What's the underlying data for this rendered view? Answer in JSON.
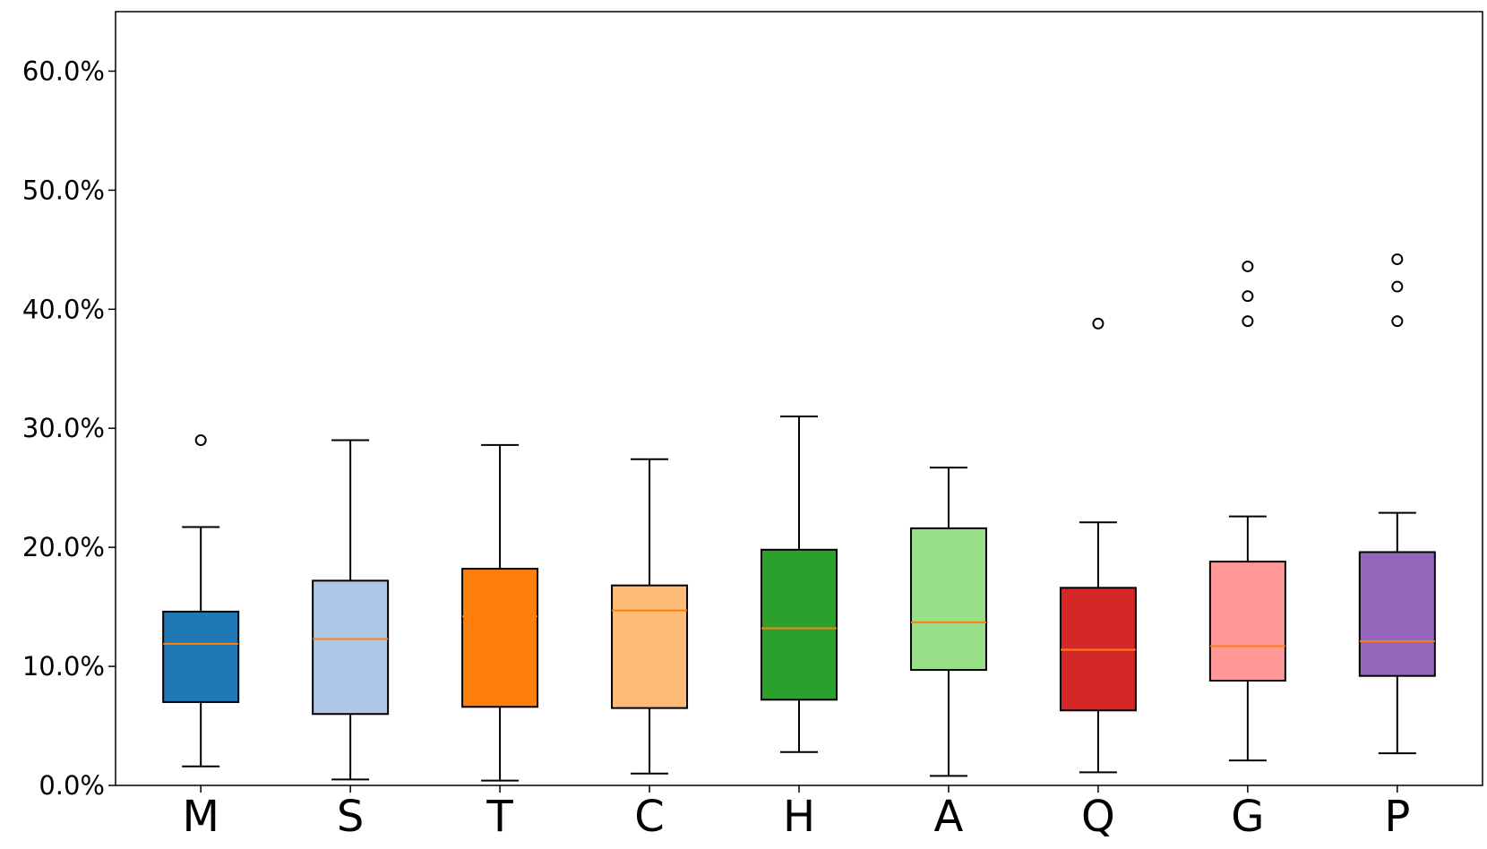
{
  "chart_data": {
    "type": "box",
    "title": "",
    "xlabel": "",
    "ylabel": "",
    "ylim": [
      0,
      0.65
    ],
    "y_tick_values": [
      0,
      0.1,
      0.2,
      0.3,
      0.4,
      0.5,
      0.6
    ],
    "y_tick_labels": [
      "0.0%",
      "10.0%",
      "20.0%",
      "30.0%",
      "40.0%",
      "50.0%",
      "60.0%"
    ],
    "grid": false,
    "legend": "none",
    "median_color": "#ff7f0e",
    "categories": [
      "M",
      "S",
      "T",
      "C",
      "H",
      "A",
      "Q",
      "G",
      "P"
    ],
    "boxes": [
      {
        "label": "M",
        "color": "#1f77b4",
        "whisker_low": 0.016,
        "q1": 0.07,
        "median": 0.119,
        "q3": 0.146,
        "whisker_high": 0.217,
        "outliers": [
          0.29
        ]
      },
      {
        "label": "S",
        "color": "#aec7e8",
        "whisker_low": 0.005,
        "q1": 0.06,
        "median": 0.123,
        "q3": 0.172,
        "whisker_high": 0.29,
        "outliers": []
      },
      {
        "label": "T",
        "color": "#ff7f0e",
        "whisker_low": 0.004,
        "q1": 0.066,
        "median": 0.142,
        "q3": 0.182,
        "whisker_high": 0.286,
        "outliers": []
      },
      {
        "label": "C",
        "color": "#ffbb78",
        "whisker_low": 0.01,
        "q1": 0.065,
        "median": 0.147,
        "q3": 0.168,
        "whisker_high": 0.274,
        "outliers": []
      },
      {
        "label": "H",
        "color": "#2ca02c",
        "whisker_low": 0.028,
        "q1": 0.072,
        "median": 0.132,
        "q3": 0.198,
        "whisker_high": 0.31,
        "outliers": []
      },
      {
        "label": "A",
        "color": "#98df8a",
        "whisker_low": 0.008,
        "q1": 0.097,
        "median": 0.137,
        "q3": 0.216,
        "whisker_high": 0.267,
        "outliers": []
      },
      {
        "label": "Q",
        "color": "#d62728",
        "whisker_low": 0.011,
        "q1": 0.063,
        "median": 0.114,
        "q3": 0.166,
        "whisker_high": 0.221,
        "outliers": [
          0.388
        ]
      },
      {
        "label": "G",
        "color": "#ff9896",
        "whisker_low": 0.021,
        "q1": 0.088,
        "median": 0.117,
        "q3": 0.188,
        "whisker_high": 0.226,
        "outliers": [
          0.39,
          0.411,
          0.436
        ]
      },
      {
        "label": "P",
        "color": "#9467bd",
        "whisker_low": 0.027,
        "q1": 0.092,
        "median": 0.121,
        "q3": 0.196,
        "whisker_high": 0.229,
        "outliers": [
          0.39,
          0.419,
          0.442
        ]
      }
    ]
  }
}
